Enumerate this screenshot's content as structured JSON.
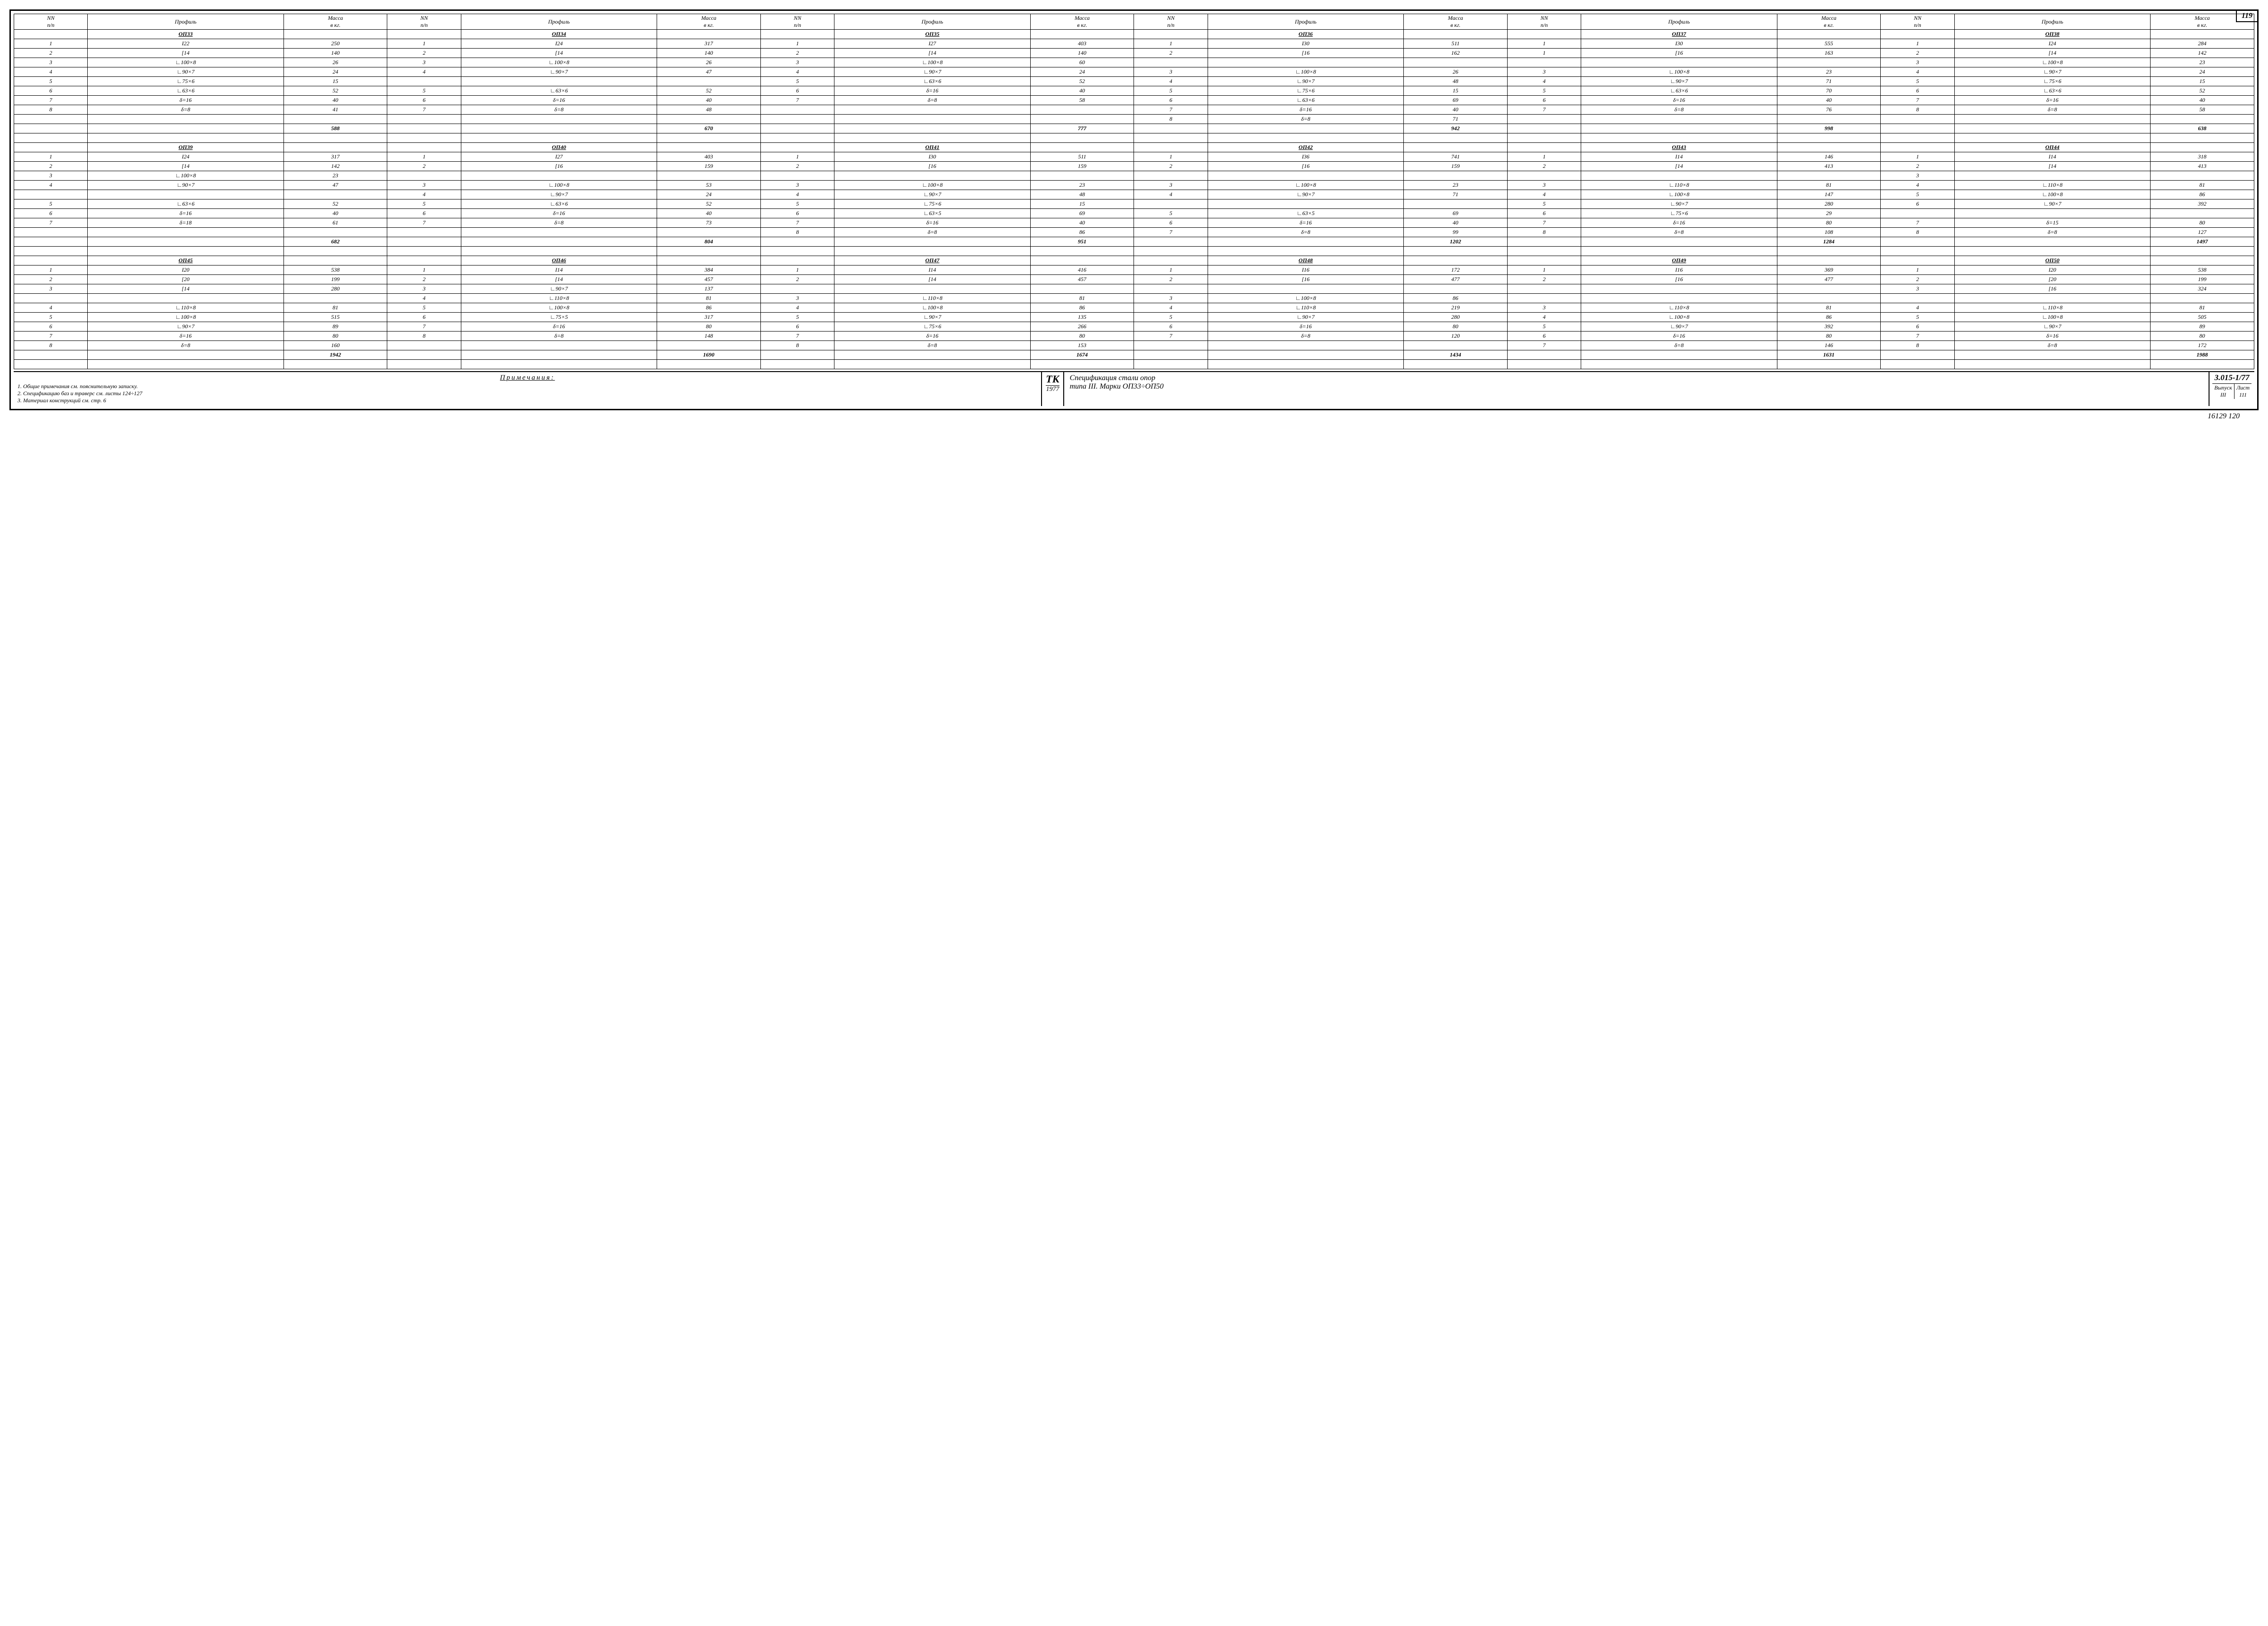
{
  "page_number": "119",
  "headers": {
    "nn": "NN\nп/п",
    "profile": "Профиль",
    "mass": "Масса\nв кг."
  },
  "groups": [
    [
      {
        "name": "ОП33",
        "rows": [
          [
            "1",
            "I22",
            "250"
          ],
          [
            "2",
            "[14",
            "140"
          ],
          [
            "3",
            "∟100×8",
            "26"
          ],
          [
            "4",
            "∟90×7",
            "24"
          ],
          [
            "5",
            "∟75×6",
            "15"
          ],
          [
            "6",
            "∟63×6",
            "52"
          ],
          [
            "7",
            "δ=16",
            "40"
          ],
          [
            "8",
            "δ=8",
            "41"
          ]
        ],
        "total": "588"
      },
      {
        "name": "ОП34",
        "rows": [
          [
            "1",
            "I24",
            "317"
          ],
          [
            "2",
            "[14",
            "140"
          ],
          [
            "3",
            "∟100×8",
            "26"
          ],
          [
            "4",
            "∟90×7",
            "47"
          ],
          [
            "",
            "",
            ""
          ],
          [
            "5",
            "∟63×6",
            "52"
          ],
          [
            "6",
            "δ=16",
            "40"
          ],
          [
            "7",
            "δ=8",
            "48"
          ]
        ],
        "total": "670"
      },
      {
        "name": "ОП35",
        "rows": [
          [
            "1",
            "I27",
            "403"
          ],
          [
            "2",
            "[14",
            "140"
          ],
          [
            "3",
            "∟100×8",
            "60"
          ],
          [
            "4",
            "∟90×7",
            "24"
          ],
          [
            "5",
            "∟63×6",
            "52"
          ],
          [
            "6",
            "δ=16",
            "40"
          ],
          [
            "7",
            "δ=8",
            "58"
          ],
          [
            "",
            "",
            ""
          ]
        ],
        "total": "777"
      },
      {
        "name": "ОП36",
        "rows": [
          [
            "1",
            "I30",
            "511"
          ],
          [
            "2",
            "[16",
            "162"
          ],
          [
            "",
            "",
            ""
          ],
          [
            "3",
            "∟100×8",
            "26"
          ],
          [
            "4",
            "∟90×7",
            "48"
          ],
          [
            "5",
            "∟75×6",
            "15"
          ],
          [
            "6",
            "∟63×6",
            "69"
          ],
          [
            "7",
            "δ=16",
            "40"
          ],
          [
            "8",
            "δ=8",
            "71"
          ]
        ],
        "total": "942"
      },
      {
        "name": "ОП37",
        "rows": [
          [
            "1",
            "I30",
            "555"
          ],
          [
            "1",
            "[16",
            "163"
          ],
          [
            "",
            "",
            ""
          ],
          [
            "3",
            "∟100×8",
            "23"
          ],
          [
            "4",
            "∟90×7",
            "71"
          ],
          [
            "5",
            "∟63×6",
            "70"
          ],
          [
            "6",
            "δ=16",
            "40"
          ],
          [
            "7",
            "δ=8",
            "76"
          ],
          [
            "",
            "",
            ""
          ]
        ],
        "total": "998"
      },
      {
        "name": "ОП38",
        "rows": [
          [
            "1",
            "I24",
            "284"
          ],
          [
            "2",
            "[14",
            "142"
          ],
          [
            "3",
            "∟100×8",
            "23"
          ],
          [
            "4",
            "∟90×7",
            "24"
          ],
          [
            "5",
            "∟75×6",
            "15"
          ],
          [
            "6",
            "∟63×6",
            "52"
          ],
          [
            "7",
            "δ=16",
            "40"
          ],
          [
            "8",
            "δ=8",
            "58"
          ],
          [
            "",
            "",
            ""
          ]
        ],
        "total": "638"
      }
    ],
    [
      {
        "name": "ОП39",
        "rows": [
          [
            "1",
            "I24",
            "317"
          ],
          [
            "2",
            "[14",
            "142"
          ],
          [
            "3",
            "∟100×8",
            "23"
          ],
          [
            "4",
            "∟90×7",
            "47"
          ],
          [
            "",
            "",
            ""
          ],
          [
            "5",
            "∟63×6",
            "52"
          ],
          [
            "6",
            "δ=16",
            "40"
          ],
          [
            "7",
            "δ=18",
            "61"
          ]
        ],
        "total": "682"
      },
      {
        "name": "ОП40",
        "rows": [
          [
            "1",
            "I27",
            "403"
          ],
          [
            "2",
            "[16",
            "159"
          ],
          [
            "",
            "",
            ""
          ],
          [
            "3",
            "∟100×8",
            "53"
          ],
          [
            "4",
            "∟90×7",
            "24"
          ],
          [
            "5",
            "∟63×6",
            "52"
          ],
          [
            "6",
            "δ=16",
            "40"
          ],
          [
            "7",
            "δ=8",
            "73"
          ]
        ],
        "total": "804"
      },
      {
        "name": "ОП41",
        "rows": [
          [
            "1",
            "I30",
            "511"
          ],
          [
            "2",
            "[16",
            "159"
          ],
          [
            "",
            "",
            ""
          ],
          [
            "3",
            "∟100×8",
            "23"
          ],
          [
            "4",
            "∟90×7",
            "48"
          ],
          [
            "5",
            "∟75×6",
            "15"
          ],
          [
            "6",
            "∟63×5",
            "69"
          ],
          [
            "7",
            "δ=16",
            "40"
          ],
          [
            "8",
            "δ=8",
            "86"
          ]
        ],
        "total": "951"
      },
      {
        "name": "ОП42",
        "rows": [
          [
            "1",
            "I36",
            "741"
          ],
          [
            "2",
            "[16",
            "159"
          ],
          [
            "",
            "",
            ""
          ],
          [
            "3",
            "∟100×8",
            "23"
          ],
          [
            "4",
            "∟90×7",
            "71"
          ],
          [
            "",
            "",
            ""
          ],
          [
            "5",
            "∟63×5",
            "69"
          ],
          [
            "6",
            "δ=16",
            "40"
          ],
          [
            "7",
            "δ=8",
            "99"
          ]
        ],
        "total": "1202"
      },
      {
        "name": "ОП43",
        "rows": [
          [
            "1",
            "I14",
            "146"
          ],
          [
            "2",
            "[14",
            "413"
          ],
          [
            "",
            "",
            ""
          ],
          [
            "3",
            "∟110×8",
            "81"
          ],
          [
            "4",
            "∟100×8",
            "147"
          ],
          [
            "5",
            "∟90×7",
            "280"
          ],
          [
            "6",
            "∟75×6",
            "29"
          ],
          [
            "7",
            "δ=16",
            "80"
          ],
          [
            "8",
            "δ=8",
            "108"
          ]
        ],
        "total": "1284"
      },
      {
        "name": "ОП44",
        "rows": [
          [
            "1",
            "I14",
            "318"
          ],
          [
            "2",
            "[14",
            "413"
          ],
          [
            "3",
            "",
            ""
          ],
          [
            "4",
            "∟110×8",
            "81"
          ],
          [
            "5",
            "∟100×8",
            "86"
          ],
          [
            "6",
            "∟90×7",
            "392"
          ],
          [
            "",
            "",
            ""
          ],
          [
            "7",
            "δ=15",
            "80"
          ],
          [
            "8",
            "δ=8",
            "127"
          ]
        ],
        "total": "1497"
      }
    ],
    [
      {
        "name": "ОП45",
        "rows": [
          [
            "1",
            "I20",
            "538"
          ],
          [
            "2",
            "[20",
            "199"
          ],
          [
            "3",
            "[14",
            "280"
          ],
          [
            "",
            "",
            ""
          ],
          [
            "4",
            "∟110×8",
            "81"
          ],
          [
            "5",
            "∟100×8",
            "515"
          ],
          [
            "6",
            "∟90×7",
            "89"
          ],
          [
            "7",
            "δ=16",
            "80"
          ],
          [
            "8",
            "δ=8",
            "160"
          ]
        ],
        "total": "1942"
      },
      {
        "name": "ОП46",
        "rows": [
          [
            "1",
            "I14",
            "384"
          ],
          [
            "2",
            "[14",
            "457"
          ],
          [
            "3",
            "∟90×7",
            "137"
          ],
          [
            "4",
            "∟110×8",
            "81"
          ],
          [
            "5",
            "∟100×8",
            "86"
          ],
          [
            "6",
            "∟75×5",
            "317"
          ],
          [
            "7",
            "δ=16",
            "80"
          ],
          [
            "8",
            "δ=8",
            "148"
          ],
          [
            "",
            "",
            ""
          ]
        ],
        "total": "1690"
      },
      {
        "name": "ОП47",
        "rows": [
          [
            "1",
            "I14",
            "416"
          ],
          [
            "2",
            "[14",
            "457"
          ],
          [
            "",
            "",
            ""
          ],
          [
            "3",
            "∟110×8",
            "81"
          ],
          [
            "4",
            "∟100×8",
            "86"
          ],
          [
            "5",
            "∟90×7",
            "135"
          ],
          [
            "6",
            "∟75×6",
            "266"
          ],
          [
            "7",
            "δ=16",
            "80"
          ],
          [
            "8",
            "δ=8",
            "153"
          ]
        ],
        "total": "1674"
      },
      {
        "name": "ОП48",
        "rows": [
          [
            "1",
            "I16",
            "172"
          ],
          [
            "2",
            "[16",
            "477"
          ],
          [
            "",
            "",
            ""
          ],
          [
            "3",
            "∟100×8",
            "86"
          ],
          [
            "4",
            "∟110×8",
            "219"
          ],
          [
            "5",
            "∟90×7",
            "280"
          ],
          [
            "6",
            "δ=16",
            "80"
          ],
          [
            "7",
            "δ=8",
            "120"
          ],
          [
            "",
            "",
            ""
          ]
        ],
        "total": "1434"
      },
      {
        "name": "ОП49",
        "rows": [
          [
            "1",
            "I16",
            "369"
          ],
          [
            "2",
            "[16",
            "477"
          ],
          [
            "",
            "",
            ""
          ],
          [
            "",
            "",
            ""
          ],
          [
            "3",
            "∟110×8",
            "81"
          ],
          [
            "4",
            "∟100×8",
            "86"
          ],
          [
            "5",
            "∟90×7",
            "392"
          ],
          [
            "6",
            "δ=16",
            "80"
          ],
          [
            "7",
            "δ=8",
            "146"
          ]
        ],
        "total": "1631"
      },
      {
        "name": "ОП50",
        "rows": [
          [
            "1",
            "I20",
            "538"
          ],
          [
            "2",
            "[20",
            "199"
          ],
          [
            "3",
            "[16",
            "324"
          ],
          [
            "",
            "",
            ""
          ],
          [
            "4",
            "∟110×8",
            "81"
          ],
          [
            "5",
            "∟100×8",
            "505"
          ],
          [
            "6",
            "∟90×7",
            "89"
          ],
          [
            "7",
            "δ=16",
            "80"
          ],
          [
            "8",
            "δ=8",
            "172"
          ]
        ],
        "total": "1988"
      }
    ]
  ],
  "notes": {
    "title": "Примечания:",
    "lines": [
      "1. Общие примечания см. пояснительную записку.",
      "2. Спецификацию баз и траверс см. листы 124÷127",
      "3. Материал конструкций см. стр. 6"
    ]
  },
  "stamp": {
    "tk": "ТК",
    "year": "1977",
    "title_l1": "Спецификация стали опор",
    "title_l2": "типа III. Марки ОП33÷ОП50",
    "code": "3.015-1/77",
    "issue_label": "Выпуск",
    "issue": "III",
    "sheet_label": "Лист",
    "sheet": "111"
  },
  "below": "16129   120"
}
